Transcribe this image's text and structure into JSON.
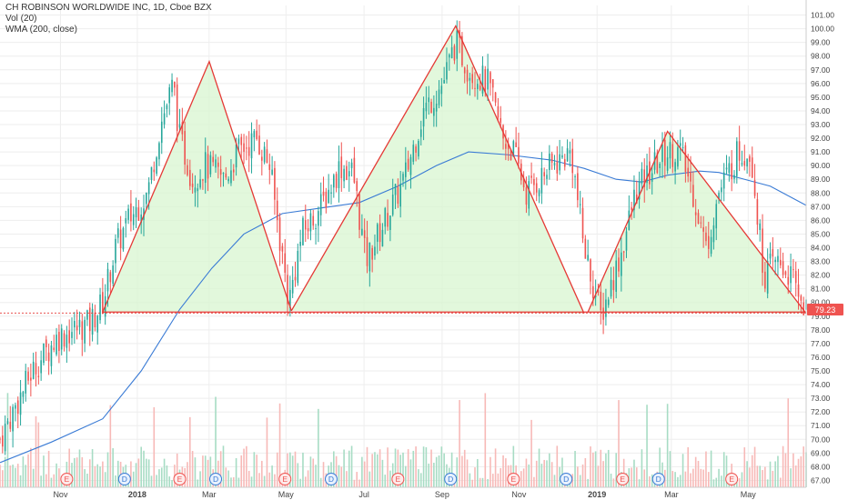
{
  "legend": {
    "title": "CH ROBINSON WORLDWIDE INC, 1D, Cboe BZX",
    "vol": "Vol (20)",
    "wma": "WMA (200, close)"
  },
  "price_label": "79.23",
  "colors": {
    "up": "#26a69a",
    "down": "#ef5350",
    "wma": "#3a7bd5",
    "pattern_line": "#e53935",
    "pattern_fill": "#d8f5d0",
    "vol_up": "#a7dcc4",
    "vol_down": "#f7b9b7",
    "grid": "#eeeeee"
  },
  "chart_data": {
    "type": "candlestick",
    "ylim": [
      66.5,
      101.7
    ],
    "y_ticks": [
      67,
      68,
      69,
      70,
      71,
      72,
      73,
      74,
      75,
      76,
      77,
      78,
      79,
      80,
      81,
      82,
      83,
      84,
      85,
      86,
      87,
      88,
      89,
      90,
      91,
      92,
      93,
      94,
      95,
      96,
      97,
      98,
      99,
      100,
      101
    ],
    "y_tick_labels": [
      "67.00",
      "68.00",
      "69.00",
      "70.00",
      "71.00",
      "72.00",
      "73.00",
      "74.00",
      "75.00",
      "76.00",
      "77.00",
      "78.00",
      "79.00",
      "80.00",
      "81.00",
      "82.00",
      "83.00",
      "84.00",
      "85.00",
      "86.00",
      "87.00",
      "88.00",
      "89.00",
      "90.00",
      "91.00",
      "92.00",
      "93.00",
      "94.00",
      "95.00",
      "96.00",
      "97.00",
      "98.00",
      "99.00",
      "100.00",
      "101.00"
    ],
    "x_range_days": [
      0,
      290
    ],
    "x_ticks": [
      {
        "day": 48,
        "label": "Nov",
        "bold": false
      },
      {
        "day": 109,
        "label": "2018",
        "bold": true
      },
      {
        "day": 166,
        "label": "Mar",
        "bold": false
      },
      {
        "day": 227,
        "label": "May",
        "bold": false
      },
      {
        "day": 289,
        "label": "Jul",
        "bold": false
      },
      {
        "day": 351,
        "label": "Sep",
        "bold": false
      },
      {
        "day": 412,
        "label": "Nov",
        "bold": false
      },
      {
        "day": 474,
        "label": "2019",
        "bold": true
      },
      {
        "day": 533,
        "label": "Mar",
        "bold": false
      },
      {
        "day": 594,
        "label": "May",
        "bold": false
      }
    ],
    "x_day_range": [
      0,
      628
    ],
    "price_anchors": [
      [
        0,
        70
      ],
      [
        10,
        72
      ],
      [
        25,
        75
      ],
      [
        45,
        77.5
      ],
      [
        70,
        78.5
      ],
      [
        80,
        80
      ],
      [
        90,
        84
      ],
      [
        100,
        86
      ],
      [
        115,
        88
      ],
      [
        125,
        93
      ],
      [
        135,
        96
      ],
      [
        140,
        92
      ],
      [
        150,
        89
      ],
      [
        160,
        90
      ],
      [
        175,
        89
      ],
      [
        185,
        91
      ],
      [
        200,
        92
      ],
      [
        210,
        90
      ],
      [
        225,
        80
      ],
      [
        235,
        85
      ],
      [
        250,
        87
      ],
      [
        265,
        90
      ],
      [
        275,
        89.5
      ],
      [
        285,
        83
      ],
      [
        300,
        86
      ],
      [
        315,
        89
      ],
      [
        330,
        94
      ],
      [
        345,
        96
      ],
      [
        355,
        99
      ],
      [
        365,
        97
      ],
      [
        380,
        96
      ],
      [
        392,
        92
      ],
      [
        400,
        91
      ],
      [
        410,
        88
      ],
      [
        420,
        89
      ],
      [
        430,
        90
      ],
      [
        445,
        91
      ],
      [
        455,
        84
      ],
      [
        468,
        79
      ],
      [
        475,
        81
      ],
      [
        485,
        84
      ],
      [
        495,
        88
      ],
      [
        510,
        90
      ],
      [
        520,
        91
      ],
      [
        530,
        91
      ],
      [
        540,
        88
      ],
      [
        550,
        84
      ],
      [
        560,
        88
      ],
      [
        575,
        91
      ],
      [
        585,
        91
      ],
      [
        595,
        82
      ],
      [
        605,
        83
      ],
      [
        615,
        82
      ],
      [
        628,
        79.5
      ]
    ],
    "wma_points": [
      [
        0,
        68.3
      ],
      [
        40,
        69.8
      ],
      [
        80,
        71.5
      ],
      [
        110,
        75
      ],
      [
        140,
        79.5
      ],
      [
        165,
        82.5
      ],
      [
        190,
        85
      ],
      [
        220,
        86.5
      ],
      [
        250,
        86.9
      ],
      [
        280,
        87.3
      ],
      [
        310,
        88.5
      ],
      [
        340,
        90
      ],
      [
        365,
        91
      ],
      [
        395,
        90.8
      ],
      [
        430,
        90.4
      ],
      [
        455,
        89.8
      ],
      [
        480,
        89
      ],
      [
        500,
        88.8
      ],
      [
        520,
        89.3
      ],
      [
        545,
        89.6
      ],
      [
        560,
        89.5
      ],
      [
        580,
        89
      ],
      [
        600,
        88.5
      ],
      [
        628,
        87.1
      ]
    ],
    "patterns": [
      {
        "name": "pattern-1",
        "points": [
          [
            80,
            79.3
          ],
          [
            163,
            97.6
          ],
          [
            227,
            79.4
          ]
        ]
      },
      {
        "name": "pattern-2",
        "points": [
          [
            227,
            79.4
          ],
          [
            355,
            100.2
          ],
          [
            455,
            79.2
          ]
        ]
      },
      {
        "name": "pattern-3",
        "points": [
          [
            458,
            79.3
          ],
          [
            520,
            92.5
          ],
          [
            628,
            79.2
          ]
        ]
      }
    ],
    "neckline": {
      "y": 79.3,
      "from_day": 80,
      "to_day": 628
    },
    "price_line": 79.23,
    "earnings_days": [
      52,
      140,
      222,
      310,
      400,
      485,
      570
    ],
    "dividend_days": [
      97,
      168,
      258,
      351,
      441,
      513
    ]
  }
}
